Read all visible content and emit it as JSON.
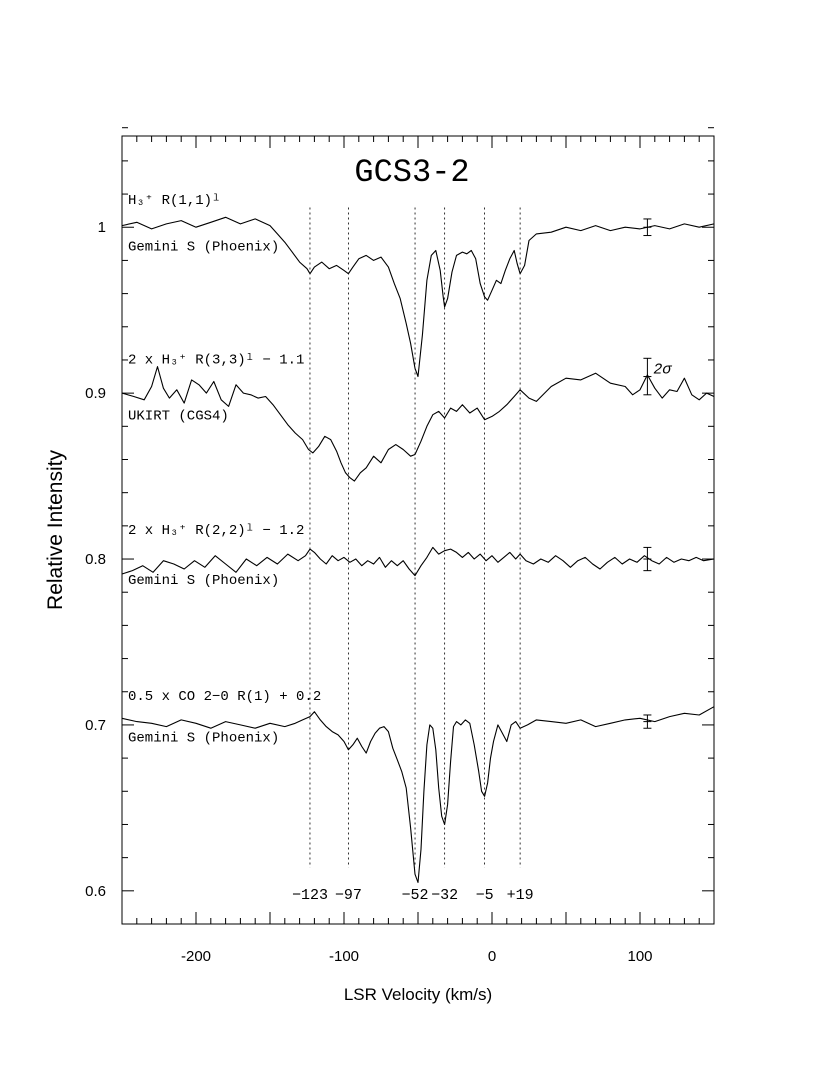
{
  "chart_data": {
    "type": "line",
    "title": "GCS3-2",
    "xlabel": "LSR Velocity (km/s)",
    "ylabel": "Relative Intensity",
    "xlim": [
      -250,
      150
    ],
    "ylim": [
      0.58,
      1.055
    ],
    "x_ticks": [
      -200,
      -100,
      0,
      100
    ],
    "y_ticks": [
      0.6,
      0.7,
      0.8,
      0.9,
      1.0
    ],
    "x_tick_labels": [
      "-200",
      "-100",
      "0",
      "100"
    ],
    "y_tick_labels": [
      "0.6",
      "0.7",
      "0.8",
      "0.9",
      "1"
    ],
    "reference_velocities": [
      -123,
      -97,
      -52,
      -32,
      -5,
      19
    ],
    "reference_labels": [
      "−123",
      "−97",
      "−52",
      "−32",
      "−5",
      "+19"
    ],
    "series": [
      {
        "label_line1": "H₃⁺ R(1,1)ˡ",
        "label_line2": "Gemini S (Phoenix)",
        "x": [
          -250,
          -240,
          -230,
          -220,
          -210,
          -200,
          -190,
          -180,
          -170,
          -160,
          -150,
          -145,
          -140,
          -135,
          -130,
          -125,
          -123,
          -120,
          -115,
          -110,
          -105,
          -100,
          -97,
          -94,
          -90,
          -85,
          -80,
          -75,
          -70,
          -66,
          -62,
          -58,
          -55,
          -52,
          -50,
          -47,
          -44,
          -41,
          -38,
          -35,
          -33,
          -32,
          -30,
          -27,
          -24,
          -20,
          -17,
          -14,
          -11,
          -8,
          -5,
          -3,
          0,
          3,
          6,
          9,
          12,
          15,
          17,
          19,
          22,
          25,
          30,
          40,
          50,
          60,
          70,
          80,
          90,
          100,
          110,
          120,
          130,
          140,
          150
        ],
        "y": [
          1.001,
          1.003,
          0.999,
          1.002,
          1.004,
          1.0,
          1.003,
          1.006,
          1.002,
          1.005,
          1.001,
          0.996,
          0.991,
          0.985,
          0.979,
          0.975,
          0.972,
          0.976,
          0.979,
          0.975,
          0.977,
          0.974,
          0.972,
          0.976,
          0.981,
          0.983,
          0.98,
          0.982,
          0.976,
          0.966,
          0.957,
          0.942,
          0.93,
          0.915,
          0.91,
          0.935,
          0.968,
          0.983,
          0.986,
          0.974,
          0.958,
          0.952,
          0.957,
          0.973,
          0.983,
          0.985,
          0.984,
          0.986,
          0.981,
          0.966,
          0.958,
          0.956,
          0.962,
          0.968,
          0.966,
          0.974,
          0.981,
          0.986,
          0.978,
          0.972,
          0.977,
          0.992,
          0.996,
          0.997,
          1.0,
          0.998,
          1.001,
          0.998,
          1.0,
          0.999,
          1.001,
          0.999,
          1.002,
          1.0,
          1.002
        ],
        "error_bar_x": 105,
        "error_bar_y": 1.0,
        "error_bar_half": 0.005
      },
      {
        "label_line1": "2 x H₃⁺ R(3,3)ˡ − 1.1",
        "label_line2": "UKIRT (CGS4)",
        "x": [
          -250,
          -242,
          -235,
          -230,
          -226,
          -222,
          -218,
          -213,
          -208,
          -203,
          -198,
          -193,
          -188,
          -183,
          -178,
          -173,
          -168,
          -163,
          -158,
          -153,
          -148,
          -143,
          -138,
          -133,
          -128,
          -124,
          -121,
          -117,
          -113,
          -109,
          -105,
          -102,
          -99,
          -96,
          -93,
          -89,
          -85,
          -80,
          -75,
          -70,
          -65,
          -60,
          -55,
          -52,
          -48,
          -44,
          -40,
          -36,
          -32,
          -28,
          -24,
          -20,
          -15,
          -10,
          -5,
          0,
          5,
          10,
          15,
          19,
          25,
          30,
          40,
          50,
          60,
          70,
          80,
          90,
          95,
          100,
          105,
          110,
          115,
          120,
          125,
          130,
          135,
          140,
          145,
          150
        ],
        "y": [
          0.9,
          0.898,
          0.896,
          0.904,
          0.916,
          0.903,
          0.897,
          0.902,
          0.894,
          0.908,
          0.905,
          0.9,
          0.907,
          0.896,
          0.892,
          0.905,
          0.9,
          0.899,
          0.897,
          0.898,
          0.893,
          0.887,
          0.881,
          0.876,
          0.872,
          0.866,
          0.864,
          0.868,
          0.874,
          0.872,
          0.865,
          0.858,
          0.852,
          0.849,
          0.847,
          0.852,
          0.855,
          0.862,
          0.858,
          0.866,
          0.869,
          0.866,
          0.862,
          0.863,
          0.871,
          0.88,
          0.887,
          0.889,
          0.885,
          0.891,
          0.889,
          0.893,
          0.888,
          0.891,
          0.884,
          0.886,
          0.889,
          0.893,
          0.898,
          0.902,
          0.897,
          0.895,
          0.904,
          0.909,
          0.908,
          0.912,
          0.906,
          0.904,
          0.899,
          0.902,
          0.911,
          0.903,
          0.897,
          0.902,
          0.901,
          0.909,
          0.899,
          0.896,
          0.9,
          0.898
        ],
        "error_bar_x": 105,
        "error_bar_y": 0.91,
        "error_bar_half": 0.011,
        "error_bar_label": "2σ"
      },
      {
        "label_line1": "2 x H₃⁺ R(2,2)ˡ − 1.2",
        "label_line2": "Gemini S (Phoenix)",
        "x": [
          -250,
          -243,
          -236,
          -229,
          -222,
          -215,
          -208,
          -201,
          -194,
          -187,
          -180,
          -173,
          -166,
          -159,
          -152,
          -145,
          -138,
          -131,
          -126,
          -123,
          -120,
          -116,
          -112,
          -108,
          -104,
          -100,
          -96,
          -92,
          -88,
          -84,
          -80,
          -76,
          -72,
          -68,
          -64,
          -60,
          -56,
          -52,
          -48,
          -44,
          -40,
          -36,
          -32,
          -28,
          -24,
          -20,
          -16,
          -12,
          -8,
          -4,
          0,
          4,
          8,
          12,
          16,
          19,
          23,
          28,
          33,
          38,
          43,
          48,
          53,
          58,
          63,
          68,
          73,
          78,
          83,
          88,
          93,
          98,
          103,
          108,
          113,
          118,
          123,
          128,
          133,
          138,
          143,
          150
        ],
        "y": [
          0.791,
          0.793,
          0.796,
          0.792,
          0.799,
          0.797,
          0.794,
          0.799,
          0.795,
          0.802,
          0.797,
          0.792,
          0.8,
          0.796,
          0.801,
          0.797,
          0.803,
          0.799,
          0.802,
          0.806,
          0.804,
          0.8,
          0.797,
          0.802,
          0.799,
          0.801,
          0.798,
          0.8,
          0.796,
          0.799,
          0.797,
          0.801,
          0.795,
          0.799,
          0.796,
          0.799,
          0.794,
          0.79,
          0.796,
          0.801,
          0.807,
          0.803,
          0.805,
          0.806,
          0.804,
          0.801,
          0.804,
          0.8,
          0.803,
          0.799,
          0.802,
          0.798,
          0.801,
          0.804,
          0.8,
          0.803,
          0.799,
          0.797,
          0.8,
          0.798,
          0.802,
          0.799,
          0.795,
          0.799,
          0.801,
          0.797,
          0.794,
          0.798,
          0.801,
          0.797,
          0.8,
          0.798,
          0.802,
          0.799,
          0.797,
          0.801,
          0.798,
          0.8,
          0.799,
          0.801,
          0.799,
          0.8
        ],
        "error_bar_x": 105,
        "error_bar_y": 0.8,
        "error_bar_half": 0.007
      },
      {
        "label_line1": "0.5 x CO 2−0 R(1) + 0.2",
        "label_line2": "Gemini S (Phoenix)",
        "x": [
          -250,
          -240,
          -230,
          -220,
          -210,
          -200,
          -190,
          -180,
          -170,
          -160,
          -150,
          -140,
          -133,
          -128,
          -123,
          -120,
          -116,
          -112,
          -108,
          -104,
          -100,
          -97,
          -94,
          -91,
          -88,
          -85,
          -82,
          -79,
          -76,
          -73,
          -70,
          -67,
          -64,
          -61,
          -58,
          -55,
          -52,
          -50,
          -48,
          -46,
          -44,
          -42,
          -40,
          -38,
          -36,
          -34,
          -32,
          -30,
          -28,
          -26,
          -24,
          -21,
          -18,
          -15,
          -12,
          -9,
          -7,
          -5,
          -3,
          -1,
          1,
          4,
          7,
          10,
          13,
          16,
          19,
          24,
          30,
          40,
          50,
          60,
          70,
          80,
          90,
          100,
          110,
          120,
          130,
          140,
          150
        ],
        "y": [
          0.704,
          0.702,
          0.701,
          0.699,
          0.703,
          0.701,
          0.698,
          0.702,
          0.7,
          0.698,
          0.701,
          0.699,
          0.701,
          0.703,
          0.705,
          0.708,
          0.703,
          0.699,
          0.696,
          0.694,
          0.69,
          0.685,
          0.688,
          0.692,
          0.687,
          0.683,
          0.69,
          0.695,
          0.698,
          0.699,
          0.696,
          0.686,
          0.679,
          0.672,
          0.662,
          0.638,
          0.61,
          0.605,
          0.625,
          0.66,
          0.688,
          0.7,
          0.698,
          0.685,
          0.662,
          0.645,
          0.64,
          0.652,
          0.678,
          0.699,
          0.702,
          0.7,
          0.703,
          0.701,
          0.688,
          0.672,
          0.66,
          0.657,
          0.665,
          0.68,
          0.69,
          0.7,
          0.695,
          0.69,
          0.7,
          0.702,
          0.698,
          0.7,
          0.703,
          0.702,
          0.701,
          0.703,
          0.699,
          0.701,
          0.703,
          0.704,
          0.702,
          0.705,
          0.707,
          0.706,
          0.711
        ],
        "error_bar_x": 105,
        "error_bar_y": 0.702,
        "error_bar_half": 0.004
      }
    ]
  }
}
